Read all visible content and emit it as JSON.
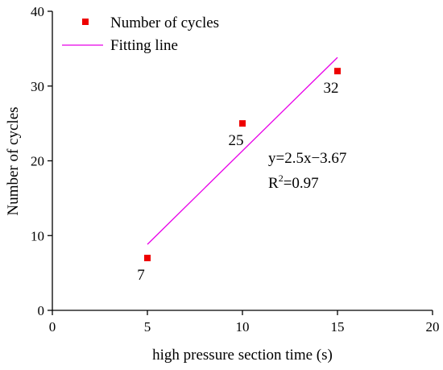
{
  "chart_data": {
    "type": "scatter",
    "xlabel": "high pressure section time (s)",
    "ylabel": "Number of cycles",
    "xlim": [
      0,
      20
    ],
    "ylim": [
      0,
      40
    ],
    "xticks": [
      0,
      5,
      10,
      15,
      20
    ],
    "yticks": [
      0,
      10,
      20,
      30,
      40
    ],
    "grid": false,
    "legend_position": "top-left",
    "series": [
      {
        "name": "Number of cycles",
        "type": "scatter",
        "color": "#ee0000",
        "x": [
          5,
          10,
          15
        ],
        "y": [
          7,
          25,
          32
        ],
        "labels": [
          "7",
          "25",
          "32"
        ]
      },
      {
        "name": "Fitting line",
        "type": "line",
        "color": "#e800e8",
        "x": [
          5,
          15
        ],
        "y": [
          8.83,
          33.83
        ]
      }
    ],
    "annotations": {
      "equation": "y=2.5x−3.67",
      "r2_prefix": "R",
      "r2_exponent": "2",
      "r2_value": "=0.97"
    }
  }
}
